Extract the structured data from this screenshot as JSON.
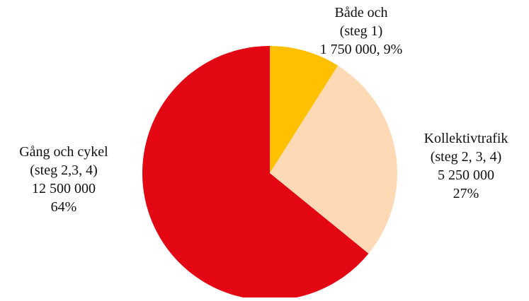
{
  "chart_data": {
    "type": "pie",
    "title": "",
    "start_angle_deg": 0,
    "direction": "clockwise",
    "slices": [
      {
        "category": "Både och",
        "detail": "(steg 1)",
        "value": 1750000,
        "value_text": "1 750 000, 9%",
        "percent_text": "",
        "percent": 9,
        "color": "#ffc000"
      },
      {
        "category": "Kollektivtrafik",
        "detail": "(steg 2, 3, 4)",
        "value": 5250000,
        "value_text": "5 250 000",
        "percent_text": "27%",
        "percent": 27,
        "color": "#fdd9b5"
      },
      {
        "category": "Gång och cykel",
        "detail": "(steg 2,3, 4)",
        "value": 12500000,
        "value_text": "12 500 000",
        "percent_text": "64%",
        "percent": 64,
        "color": "#e30613"
      }
    ]
  }
}
